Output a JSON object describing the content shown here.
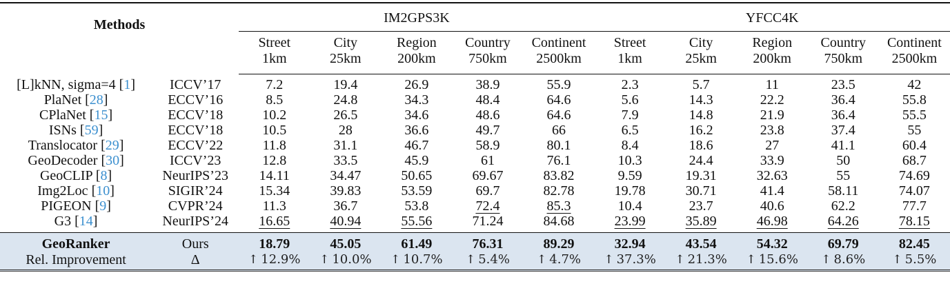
{
  "table": {
    "header": {
      "methods_label": "Methods",
      "groups": [
        {
          "name": "IM2GPS3K"
        },
        {
          "name": "YFCC4K"
        }
      ],
      "columns": [
        {
          "line1": "Street",
          "line2": "1km"
        },
        {
          "line1": "City",
          "line2": "25km"
        },
        {
          "line1": "Region",
          "line2": "200km"
        },
        {
          "line1": "Country",
          "line2": "750km"
        },
        {
          "line1": "Continent",
          "line2": "2500km"
        },
        {
          "line1": "Street",
          "line2": "1km"
        },
        {
          "line1": "City",
          "line2": "25km"
        },
        {
          "line1": "Region",
          "line2": "200km"
        },
        {
          "line1": "Country",
          "line2": "750km"
        },
        {
          "line1": "Continent",
          "line2": "2500km"
        }
      ]
    },
    "rows": [
      {
        "method": "[L]kNN, sigma=4 ",
        "ref": "1",
        "venue": "ICCV’17",
        "values": [
          "7.2",
          "19.4",
          "26.9",
          "38.9",
          "55.9",
          "2.3",
          "5.7",
          "11",
          "23.5",
          "42"
        ],
        "underline": []
      },
      {
        "method": "PlaNet ",
        "ref": "28",
        "venue": "ECCV’16",
        "values": [
          "8.5",
          "24.8",
          "34.3",
          "48.4",
          "64.6",
          "5.6",
          "14.3",
          "22.2",
          "36.4",
          "55.8"
        ],
        "underline": []
      },
      {
        "method": "CPlaNet ",
        "ref": "15",
        "venue": "ECCV’18",
        "values": [
          "10.2",
          "26.5",
          "34.6",
          "48.6",
          "64.6",
          "7.9",
          "14.8",
          "21.9",
          "36.4",
          "55.5"
        ],
        "underline": []
      },
      {
        "method": "ISNs ",
        "ref": "59",
        "venue": "ECCV’18",
        "values": [
          "10.5",
          "28",
          "36.6",
          "49.7",
          "66",
          "6.5",
          "16.2",
          "23.8",
          "37.4",
          "55"
        ],
        "underline": []
      },
      {
        "method": "Translocator ",
        "ref": "29",
        "venue": "ECCV’22",
        "values": [
          "11.8",
          "31.1",
          "46.7",
          "58.9",
          "80.1",
          "8.4",
          "18.6",
          "27",
          "41.1",
          "60.4"
        ],
        "underline": []
      },
      {
        "method": "GeoDecoder ",
        "ref": "30",
        "venue": "ICCV’23",
        "values": [
          "12.8",
          "33.5",
          "45.9",
          "61",
          "76.1",
          "10.3",
          "24.4",
          "33.9",
          "50",
          "68.7"
        ],
        "underline": []
      },
      {
        "method": "GeoCLIP ",
        "ref": "8",
        "venue": "NeurIPS’23",
        "values": [
          "14.11",
          "34.47",
          "50.65",
          "69.67",
          "83.82",
          "9.59",
          "19.31",
          "32.63",
          "55",
          "74.69"
        ],
        "underline": []
      },
      {
        "method": "Img2Loc ",
        "ref": "10",
        "venue": "SIGIR’24",
        "values": [
          "15.34",
          "39.83",
          "53.59",
          "69.7",
          "82.78",
          "19.78",
          "30.71",
          "41.4",
          "58.11",
          "74.07"
        ],
        "underline": []
      },
      {
        "method": "PIGEON ",
        "ref": "9",
        "venue": "CVPR’24",
        "values": [
          "11.3",
          "36.7",
          "53.8",
          "72.4",
          "85.3",
          "10.4",
          "23.7",
          "40.6",
          "62.2",
          "77.7"
        ],
        "underline": [
          3,
          4
        ]
      },
      {
        "method": "G3 ",
        "ref": "14",
        "venue": "NeurIPS’24",
        "values": [
          "16.65",
          "40.94",
          "55.56",
          "71.24",
          "84.68",
          "23.99",
          "35.89",
          "46.98",
          "64.26",
          "78.15"
        ],
        "underline": [
          0,
          1,
          2,
          5,
          6,
          7,
          8,
          9
        ]
      }
    ],
    "ours": {
      "method": "GeoRanker",
      "venue": "Ours",
      "values": [
        "18.79",
        "45.05",
        "61.49",
        "76.31",
        "89.29",
        "32.94",
        "43.54",
        "54.32",
        "69.79",
        "82.45"
      ]
    },
    "improvement": {
      "label": "Rel. Improvement",
      "venue": "Δ",
      "arrow": "↑",
      "values": [
        "12.9%",
        "10.0%",
        "10.7%",
        "5.4%",
        "4.7%",
        "37.3%",
        "21.3%",
        "15.6%",
        "8.6%",
        "5.5%"
      ]
    },
    "colors": {
      "highlight_row_bg": "#dbe5f0",
      "citation_link": "#3b8fcf"
    }
  }
}
